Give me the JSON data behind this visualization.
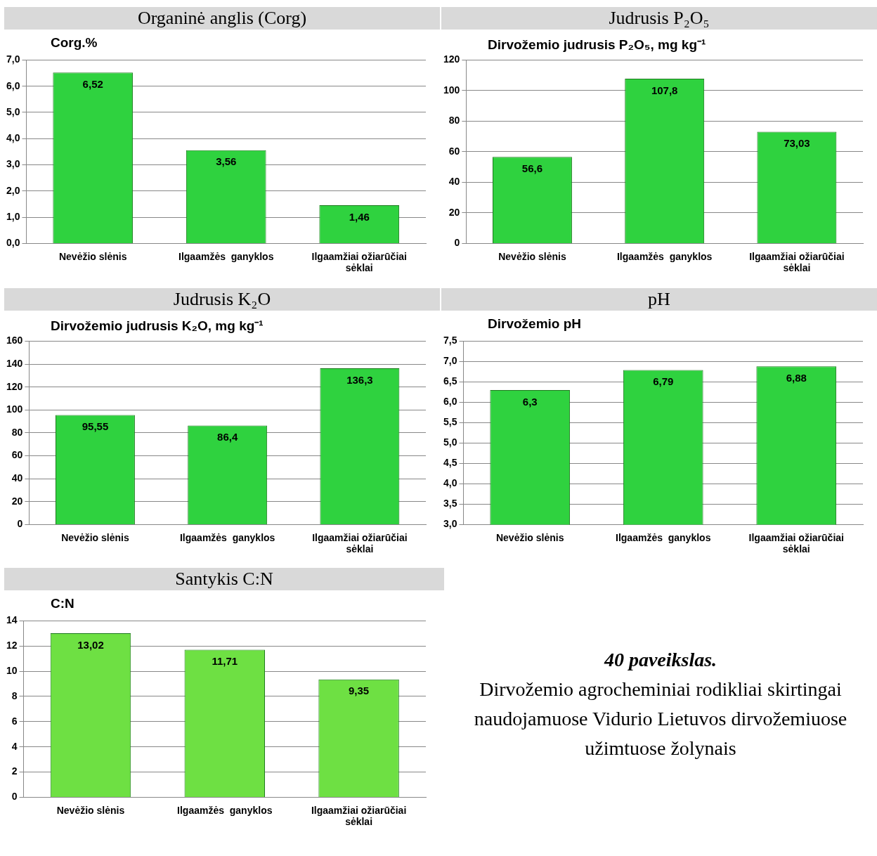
{
  "chart_data": [
    {
      "type": "bar",
      "title": "Organinė anglis (Corg)",
      "ylabel": "Corg.%",
      "categories": [
        "Nevėžio slėnis",
        "Ilgaamžės  ganyklos",
        "Ilgaamžiai ožiarūčiai sėklai"
      ],
      "values": [
        6.52,
        3.56,
        1.46
      ],
      "value_labels": [
        "6,52",
        "3,56",
        "1,46"
      ],
      "color": "#2fd23f",
      "ylim": [
        0,
        7
      ],
      "yticks": [
        {
          "value": 0,
          "label": "0,0"
        },
        {
          "value": 1,
          "label": "1,0"
        },
        {
          "value": 2,
          "label": "2,0"
        },
        {
          "value": 3,
          "label": "3,0"
        },
        {
          "value": 4,
          "label": "4,0"
        },
        {
          "value": 5,
          "label": "5,0"
        },
        {
          "value": 6,
          "label": "6,0"
        },
        {
          "value": 7,
          "label": "7,0"
        }
      ],
      "grid": "y"
    },
    {
      "type": "bar",
      "title": "Judrusis P₂O₅",
      "ylabel": "Dirvožemio judrusis P₂O₅, mg kg⁻¹",
      "categories": [
        "Nevėžio slėnis",
        "Ilgaamžės  ganyklos",
        "Ilgaamžiai ožiarūčiai sėklai"
      ],
      "values": [
        56.6,
        107.8,
        73.03
      ],
      "value_labels": [
        "56,6",
        "107,8",
        "73,03"
      ],
      "color": "#2fd23f",
      "ylim": [
        0,
        120
      ],
      "yticks": [
        0,
        20,
        40,
        60,
        80,
        100,
        120
      ],
      "grid": "y"
    },
    {
      "type": "bar",
      "title": "Judrusis K₂O",
      "ylabel": "Dirvožemio judrusis K₂O, mg kg⁻¹",
      "categories": [
        "Nevėžio slėnis",
        "Ilgaamžės  ganyklos",
        "Ilgaamžiai ožiarūčiai sėklai"
      ],
      "values": [
        95.55,
        86.4,
        136.3
      ],
      "value_labels": [
        "95,55",
        "86,4",
        "136,3"
      ],
      "color": "#2fd23f",
      "ylim": [
        0,
        160
      ],
      "yticks": [
        0,
        20,
        40,
        60,
        80,
        100,
        120,
        140,
        160
      ],
      "grid": "y"
    },
    {
      "type": "bar",
      "title": "pH",
      "ylabel": "Dirvožemio  pH",
      "categories": [
        "Nevėžio slėnis",
        "Ilgaamžės  ganyklos",
        "Ilgaamžiai ožiarūčiai sėklai"
      ],
      "values": [
        6.3,
        6.79,
        6.88
      ],
      "value_labels": [
        "6,3",
        "6,79",
        "6,88"
      ],
      "color": "#2fd23f",
      "ylim": [
        3,
        7.5
      ],
      "yticks": [
        {
          "value": 3,
          "label": "3,0"
        },
        {
          "value": 3.5,
          "label": "3,5"
        },
        {
          "value": 4,
          "label": "4,0"
        },
        {
          "value": 4.5,
          "label": "4,5"
        },
        {
          "value": 5,
          "label": "5,0"
        },
        {
          "value": 5.5,
          "label": "5,5"
        },
        {
          "value": 6,
          "label": "6,0"
        },
        {
          "value": 6.5,
          "label": "6,5"
        },
        {
          "value": 7,
          "label": "7,0"
        },
        {
          "value": 7.5,
          "label": "7,5"
        }
      ],
      "grid": "y"
    },
    {
      "type": "bar",
      "title": "Santykis C:N",
      "ylabel": "C:N",
      "categories": [
        "Nevėžio slėnis",
        "Ilgaamžės  ganyklos",
        "Ilgaamžiai ožiarūčiai sėklai"
      ],
      "values": [
        13.02,
        11.71,
        9.35
      ],
      "value_labels": [
        "13,02",
        "11,71",
        "9,35"
      ],
      "color": "#6ee043",
      "ylim": [
        0,
        14
      ],
      "yticks": [
        0,
        2,
        4,
        6,
        8,
        10,
        12,
        14
      ],
      "grid": "y",
      "annotations": [
        "40 paveikslas.",
        "Dirvožemio agrocheminiai rodikliai skirtingai naudojamuose Vidurio Lietuvos dirvožemiuose užimtuose žolynais"
      ]
    }
  ]
}
